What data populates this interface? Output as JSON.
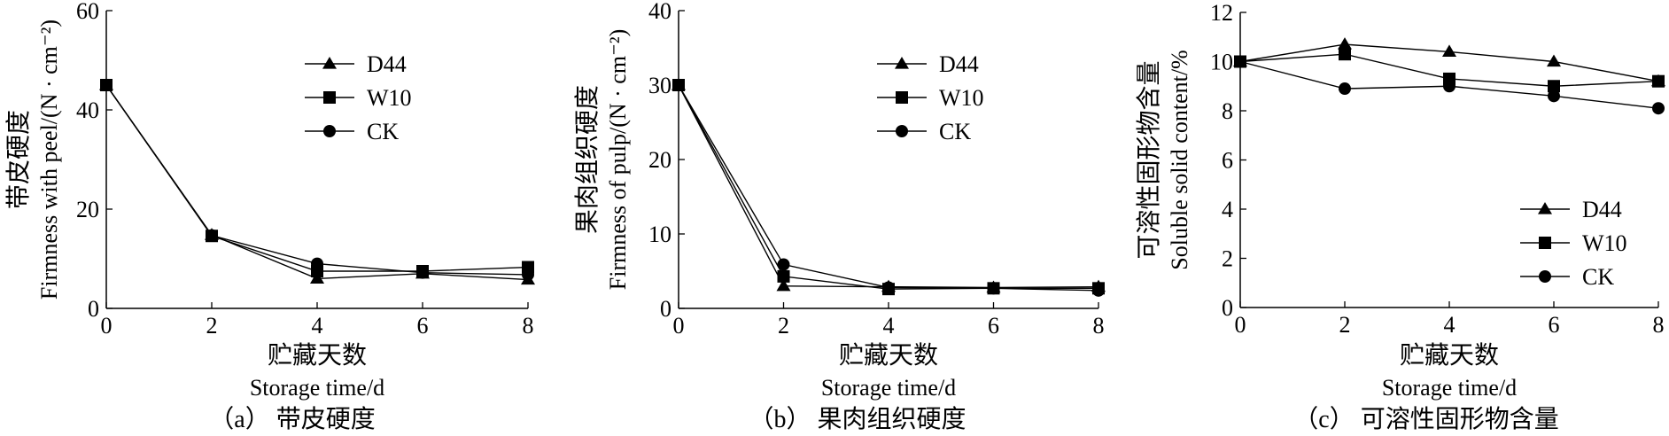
{
  "chart_data": [
    {
      "type": "line",
      "panel_caption": "（a） 带皮硬度",
      "xlabel_cn": "贮藏天数",
      "xlabel_en": "Storage time/d",
      "ylabel_cn": "带皮硬度",
      "ylabel_en": "Firmness with peel/(N · cm⁻²)",
      "x": [
        0,
        2,
        4,
        6,
        8
      ],
      "xlim": [
        0,
        8
      ],
      "ylim": [
        0,
        60
      ],
      "xticks": [
        "0",
        "2",
        "4",
        "6",
        "8"
      ],
      "yticks": [
        "0",
        "20",
        "40",
        "60"
      ],
      "legend_position": "top-right",
      "series": [
        {
          "name": "D44",
          "marker": "triangle",
          "values": [
            45,
            14.8,
            6.0,
            7.0,
            5.8
          ]
        },
        {
          "name": "W10",
          "marker": "square",
          "values": [
            45,
            14.6,
            7.5,
            7.5,
            8.3
          ]
        },
        {
          "name": "CK",
          "marker": "circle",
          "values": [
            45,
            14.7,
            9.0,
            7.2,
            6.8
          ]
        }
      ]
    },
    {
      "type": "line",
      "panel_caption": "（b） 果肉组织硬度",
      "xlabel_cn": "贮藏天数",
      "xlabel_en": "Storage time/d",
      "ylabel_cn": "果肉组织硬度",
      "ylabel_en": "Firmness of pulp/(N · cm⁻²)",
      "x": [
        0,
        2,
        4,
        6,
        8
      ],
      "xlim": [
        0,
        8
      ],
      "ylim": [
        0,
        40
      ],
      "xticks": [
        "0",
        "2",
        "4",
        "6",
        "8"
      ],
      "yticks": [
        "0",
        "10",
        "20",
        "30",
        "40"
      ],
      "legend_position": "top-right",
      "series": [
        {
          "name": "D44",
          "marker": "triangle",
          "values": [
            30,
            3.0,
            2.9,
            2.8,
            2.9
          ]
        },
        {
          "name": "W10",
          "marker": "square",
          "values": [
            30,
            4.3,
            2.6,
            2.7,
            2.7
          ]
        },
        {
          "name": "CK",
          "marker": "circle",
          "values": [
            30,
            5.9,
            2.8,
            2.7,
            2.4
          ]
        }
      ]
    },
    {
      "type": "line",
      "panel_caption": "（c） 可溶性固形物含量",
      "xlabel_cn": "贮藏天数",
      "xlabel_en": "Storage time/d",
      "ylabel_cn": "可溶性固形物含量",
      "ylabel_en": "Soluble solid content/%",
      "x": [
        0,
        2,
        4,
        6,
        8
      ],
      "xlim": [
        0,
        8
      ],
      "ylim": [
        0,
        12
      ],
      "xticks": [
        "0",
        "2",
        "4",
        "6",
        "8"
      ],
      "yticks": [
        "0",
        "2",
        "4",
        "6",
        "8",
        "10",
        "12"
      ],
      "legend_position": "bottom-right",
      "series": [
        {
          "name": "D44",
          "marker": "triangle",
          "values": [
            10.0,
            10.7,
            10.4,
            10.0,
            9.2
          ]
        },
        {
          "name": "W10",
          "marker": "square",
          "values": [
            10.0,
            10.3,
            9.3,
            9.0,
            9.2
          ]
        },
        {
          "name": "CK",
          "marker": "circle",
          "values": [
            10.0,
            8.9,
            9.0,
            8.6,
            8.1
          ]
        }
      ]
    }
  ]
}
